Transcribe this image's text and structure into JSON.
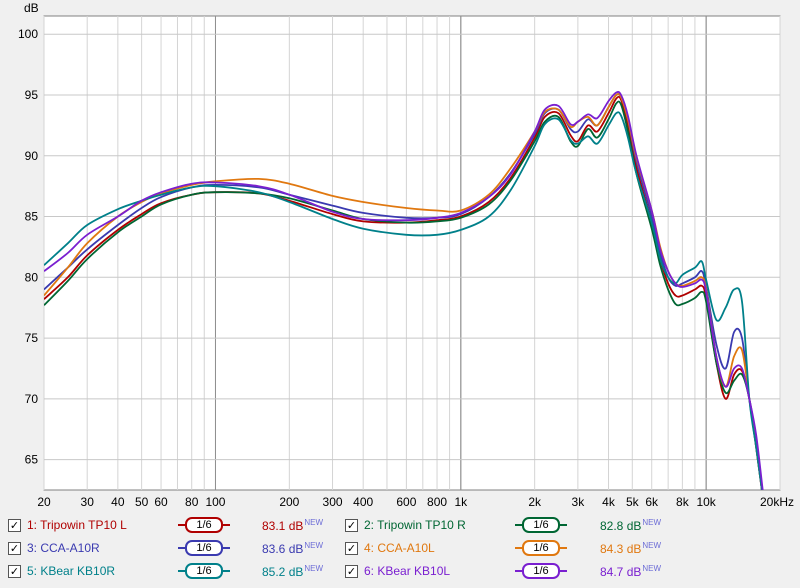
{
  "chart_data": {
    "type": "line",
    "ylabel": "dB",
    "xlabel": "",
    "x_scale": "log",
    "xlim": [
      20,
      20000
    ],
    "ylim": [
      62.5,
      101.5
    ],
    "y_ticks": [
      65,
      70,
      75,
      80,
      85,
      90,
      95,
      100
    ],
    "x_ticks": [
      {
        "v": 20,
        "label": "20"
      },
      {
        "v": 30,
        "label": "30"
      },
      {
        "v": 40,
        "label": "40"
      },
      {
        "v": 50,
        "label": "50"
      },
      {
        "v": 60,
        "label": "60"
      },
      {
        "v": 80,
        "label": "80"
      },
      {
        "v": 100,
        "label": "100"
      },
      {
        "v": 200,
        "label": "200"
      },
      {
        "v": 300,
        "label": "300"
      },
      {
        "v": 400,
        "label": "400"
      },
      {
        "v": 600,
        "label": "600"
      },
      {
        "v": 800,
        "label": "800"
      },
      {
        "v": 1000,
        "label": "1k"
      },
      {
        "v": 2000,
        "label": "2k"
      },
      {
        "v": 3000,
        "label": "3k"
      },
      {
        "v": 4000,
        "label": "4k"
      },
      {
        "v": 5000,
        "label": "5k"
      },
      {
        "v": 6000,
        "label": "6k"
      },
      {
        "v": 8000,
        "label": "8k"
      },
      {
        "v": 10000,
        "label": "10k"
      },
      {
        "v": 20000,
        "label": "20kHz"
      }
    ],
    "grid": true,
    "legend_position": "bottom",
    "series": [
      {
        "name": "1: Tripowin TP10 L",
        "color": "#b00000",
        "level": "83.1 dB",
        "smoothing": "1/6",
        "x": [
          20,
          25,
          30,
          40,
          50,
          60,
          80,
          100,
          150,
          200,
          300,
          400,
          600,
          800,
          1000,
          1300,
          1600,
          2000,
          2200,
          2500,
          2800,
          3000,
          3300,
          3600,
          4000,
          4300,
          4500,
          4800,
          5200,
          6000,
          6500,
          7000,
          7500,
          8000,
          9000,
          9600,
          10000,
          11000,
          12000,
          13000,
          14000,
          15000,
          16000,
          17000
        ],
        "y": [
          78.2,
          80,
          81.8,
          83.9,
          85.2,
          86.1,
          86.8,
          87,
          86.9,
          86.3,
          85.2,
          84.6,
          84.5,
          84.7,
          85,
          86.2,
          88.2,
          91.5,
          93.2,
          93.5,
          91.7,
          91.2,
          92.5,
          92,
          93.5,
          94.7,
          94.6,
          92.5,
          89,
          84.5,
          81.5,
          79.5,
          78.5,
          78.5,
          79,
          79.3,
          78.3,
          73,
          70,
          72,
          72.3,
          70,
          66,
          62
        ]
      },
      {
        "name": "2: Tripowin TP10 R",
        "color": "#006633",
        "level": "82.8 dB",
        "smoothing": "1/6",
        "x": [
          20,
          25,
          30,
          40,
          50,
          60,
          80,
          100,
          150,
          200,
          300,
          400,
          600,
          800,
          1000,
          1300,
          1600,
          2000,
          2200,
          2500,
          2800,
          3000,
          3300,
          3600,
          4000,
          4300,
          4500,
          4800,
          5200,
          6000,
          6500,
          7000,
          7500,
          8000,
          9000,
          9600,
          10000,
          11000,
          12000,
          13000,
          14000,
          15000,
          16000,
          17000
        ],
        "y": [
          77.7,
          79.7,
          81.5,
          83.7,
          85,
          86,
          86.8,
          87,
          86.9,
          86.5,
          85.5,
          84.8,
          84.5,
          84.6,
          84.9,
          86,
          88,
          91.2,
          92.8,
          93.2,
          91.2,
          90.8,
          92.2,
          91.5,
          93,
          94.3,
          94.2,
          92,
          88.5,
          84,
          81,
          79,
          77.8,
          77.8,
          78.3,
          78.8,
          78,
          73,
          70.5,
          71.5,
          72,
          70,
          66.5,
          62
        ]
      },
      {
        "name": "3: CCA-A10R",
        "color": "#3a3ab0",
        "level": "83.6 dB",
        "smoothing": "1/6",
        "x": [
          20,
          25,
          30,
          40,
          50,
          60,
          80,
          100,
          150,
          200,
          300,
          400,
          600,
          800,
          1000,
          1300,
          1600,
          2000,
          2200,
          2500,
          2800,
          3000,
          3300,
          3600,
          4000,
          4300,
          4500,
          4800,
          5200,
          6000,
          6500,
          7000,
          7500,
          8000,
          9000,
          9600,
          10000,
          11000,
          12000,
          13000,
          14000,
          15000,
          16000,
          17000
        ],
        "y": [
          79,
          80.8,
          82.3,
          84.3,
          85.7,
          86.6,
          87.4,
          87.6,
          87.4,
          86.8,
          85.9,
          85.3,
          84.9,
          84.9,
          85.2,
          86.6,
          88.6,
          91.8,
          93.5,
          93.8,
          92.2,
          92,
          93,
          92.5,
          94,
          95,
          94.8,
          93,
          89.5,
          85,
          82,
          80,
          79.3,
          79.5,
          80,
          80.5,
          79.2,
          74.5,
          72.5,
          75.5,
          75,
          70,
          66,
          62
        ]
      },
      {
        "name": "4: CCA-A10L",
        "color": "#e07810",
        "level": "84.3 dB",
        "smoothing": "1/6",
        "x": [
          20,
          25,
          30,
          40,
          50,
          60,
          80,
          100,
          150,
          200,
          300,
          400,
          600,
          800,
          1000,
          1300,
          1600,
          2000,
          2200,
          2500,
          2800,
          3000,
          3300,
          3600,
          4000,
          4300,
          4500,
          4800,
          5200,
          6000,
          6500,
          7000,
          7500,
          8000,
          9000,
          9600,
          10000,
          11000,
          12000,
          13000,
          14000,
          15000,
          16000,
          17000
        ],
        "y": [
          78.5,
          80.8,
          82.8,
          85,
          86.2,
          86.9,
          87.6,
          87.9,
          88.1,
          87.7,
          86.7,
          86.2,
          85.7,
          85.5,
          85.5,
          86.8,
          89,
          92,
          93.6,
          93.8,
          92.4,
          92.8,
          93.2,
          92.5,
          94,
          95,
          94.8,
          93,
          89.8,
          85.5,
          82.5,
          80.5,
          79.5,
          79.3,
          79.7,
          80,
          79,
          73.5,
          71,
          73.5,
          74,
          70,
          66,
          62
        ]
      },
      {
        "name": "5: KBear KB10R",
        "color": "#00808a",
        "level": "85.2 dB",
        "smoothing": "1/6",
        "x": [
          20,
          25,
          30,
          40,
          50,
          60,
          80,
          100,
          150,
          200,
          300,
          400,
          600,
          800,
          1000,
          1300,
          1600,
          2000,
          2200,
          2500,
          2800,
          3000,
          3300,
          3600,
          4000,
          4300,
          4500,
          4800,
          5200,
          6000,
          6500,
          7000,
          7500,
          8000,
          9000,
          9600,
          10000,
          11000,
          12000,
          13000,
          14000,
          15000,
          16000,
          17000
        ],
        "y": [
          81,
          82.8,
          84.3,
          85.6,
          86.3,
          86.8,
          87.4,
          87.5,
          87,
          86.2,
          84.8,
          84,
          83.5,
          83.5,
          83.9,
          85,
          87.2,
          90.8,
          92.6,
          93,
          91.3,
          91,
          91.6,
          91,
          92.5,
          93.5,
          93.3,
          91.5,
          88.5,
          84.5,
          81.5,
          80,
          79.5,
          80.2,
          80.8,
          81.3,
          79.8,
          76.5,
          77.5,
          79,
          78,
          70,
          66,
          62
        ]
      },
      {
        "name": "6: KBear KB10L",
        "color": "#7a1fd0",
        "level": "84.7 dB",
        "smoothing": "1/6",
        "x": [
          20,
          25,
          30,
          40,
          50,
          60,
          80,
          100,
          150,
          200,
          300,
          400,
          600,
          800,
          1000,
          1300,
          1600,
          2000,
          2200,
          2500,
          2800,
          3000,
          3300,
          3600,
          4000,
          4300,
          4500,
          4800,
          5200,
          6000,
          6500,
          7000,
          7500,
          8000,
          9000,
          9600,
          10000,
          11000,
          12000,
          13000,
          14000,
          15000,
          16000,
          17000
        ],
        "y": [
          80.5,
          82,
          83.5,
          85,
          86.3,
          87,
          87.7,
          87.8,
          87.5,
          86.8,
          85.4,
          84.8,
          84.7,
          84.9,
          85.3,
          86.6,
          88.5,
          92,
          93.8,
          94.1,
          92.6,
          92.8,
          93.4,
          93.1,
          94.5,
          95.2,
          95,
          93.3,
          90,
          85.5,
          82.3,
          80.5,
          79.5,
          79.2,
          79.5,
          79.8,
          78.8,
          73.5,
          71,
          72.5,
          72.5,
          70,
          67,
          62.5
        ]
      }
    ]
  },
  "legend": {
    "items": [
      {
        "label": "1: Tripowin TP10 L",
        "level": "83.1 dB",
        "badge": "NEW",
        "smoothing": "1/6",
        "checked": "✓"
      },
      {
        "label": "2: Tripowin TP10 R",
        "level": "82.8 dB",
        "badge": "NEW",
        "smoothing": "1/6",
        "checked": "✓"
      },
      {
        "label": "3: CCA-A10R",
        "level": "83.6 dB",
        "badge": "NEW",
        "smoothing": "1/6",
        "checked": "✓"
      },
      {
        "label": "4: CCA-A10L",
        "level": "84.3 dB",
        "badge": "NEW",
        "smoothing": "1/6",
        "checked": "✓"
      },
      {
        "label": "5: KBear KB10R",
        "level": "85.2 dB",
        "badge": "NEW",
        "smoothing": "1/6",
        "checked": "✓"
      },
      {
        "label": "6: KBear KB10L",
        "level": "84.7 dB",
        "badge": "NEW",
        "smoothing": "1/6",
        "checked": "✓"
      }
    ]
  }
}
